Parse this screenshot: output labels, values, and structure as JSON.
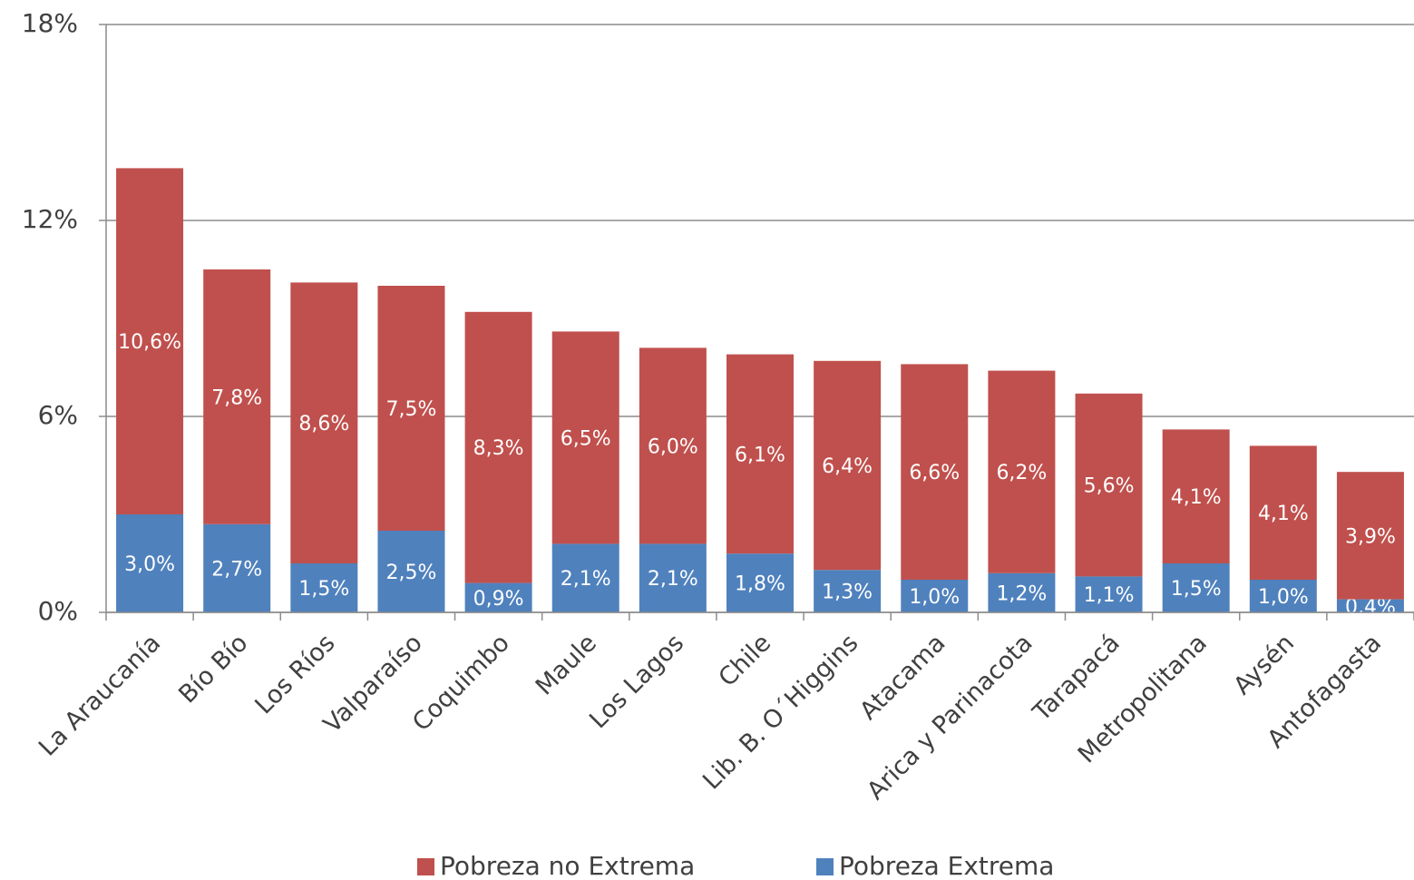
{
  "chart_data": {
    "type": "stacked_bar",
    "categories": [
      "La Araucanía",
      "Bío Bío",
      "Los Ríos",
      "Valparaíso",
      "Coquimbo",
      "Maule",
      "Los Lagos",
      "Chile",
      "Lib. B. O´Higgins",
      "Atacama",
      "Arica y Parinacota",
      "Tarapacá",
      "Metropolitana",
      "Aysén",
      "Antofagasta"
    ],
    "series": [
      {
        "name": "Pobreza no Extrema",
        "color": "#c0504d",
        "values": [
          10.6,
          7.8,
          8.6,
          7.5,
          8.3,
          6.5,
          6.0,
          6.1,
          6.4,
          6.6,
          6.2,
          5.6,
          4.1,
          4.1,
          3.9
        ],
        "value_labels": [
          "10,6%",
          "7,8%",
          "8,6%",
          "7,5%",
          "8,3%",
          "6,5%",
          "6,0%",
          "6,1%",
          "6,4%",
          "6,6%",
          "6,2%",
          "5,6%",
          "4,1%",
          "4,1%",
          "3,9%"
        ]
      },
      {
        "name": "Pobreza Extrema",
        "color": "#4f81bd",
        "values": [
          3.0,
          2.7,
          1.5,
          2.5,
          0.9,
          2.1,
          2.1,
          1.8,
          1.3,
          1.0,
          1.2,
          1.1,
          1.5,
          1.0,
          0.4
        ],
        "value_labels": [
          "3,0%",
          "2,7%",
          "1,5%",
          "2,5%",
          "0,9%",
          "2,1%",
          "2,1%",
          "1,8%",
          "1,3%",
          "1,0%",
          "1,2%",
          "1,1%",
          "1,5%",
          "1,0%",
          "0,4%"
        ]
      }
    ],
    "ylim": [
      0,
      18
    ],
    "yticks": [
      {
        "value": 0,
        "label": "0%"
      },
      {
        "value": 6,
        "label": "6%"
      },
      {
        "value": 12,
        "label": "12%"
      },
      {
        "value": 18,
        "label": "18%"
      }
    ],
    "grid": true
  }
}
